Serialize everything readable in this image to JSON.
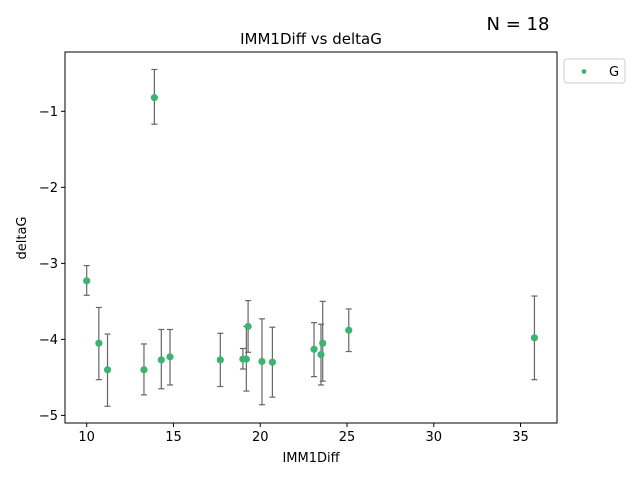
{
  "annotation": "N = 18",
  "colors": {
    "point": "#3cb371",
    "errorbar": "#666666",
    "axis": "#000000"
  },
  "chart_data": {
    "type": "scatter",
    "title": "IMM1Diff vs deltaG",
    "xlabel": "IMM1Diff",
    "ylabel": "deltaG",
    "xlim": [
      8.75,
      37.1
    ],
    "ylim": [
      -5.1,
      -0.22
    ],
    "xticks": [
      10,
      15,
      20,
      25,
      30,
      35
    ],
    "yticks": [
      -1,
      -2,
      -3,
      -4,
      -5
    ],
    "grid": false,
    "legend": {
      "entries": [
        "G"
      ],
      "placement": "outside-top-right"
    },
    "series": [
      {
        "name": "G",
        "points": [
          {
            "x": 10.0,
            "y": -3.23,
            "err_low": 0.19,
            "err_high": 0.2
          },
          {
            "x": 10.7,
            "y": -4.05,
            "err_low": 0.48,
            "err_high": 0.47
          },
          {
            "x": 11.2,
            "y": -4.4,
            "err_low": 0.48,
            "err_high": 0.47
          },
          {
            "x": 13.3,
            "y": -4.4,
            "err_low": 0.33,
            "err_high": 0.34
          },
          {
            "x": 13.9,
            "y": -0.82,
            "err_low": 0.35,
            "err_high": 0.37
          },
          {
            "x": 14.3,
            "y": -4.27,
            "err_low": 0.38,
            "err_high": 0.4
          },
          {
            "x": 14.8,
            "y": -4.23,
            "err_low": 0.37,
            "err_high": 0.36
          },
          {
            "x": 17.7,
            "y": -4.27,
            "err_low": 0.35,
            "err_high": 0.35
          },
          {
            "x": 19.0,
            "y": -4.26,
            "err_low": 0.13,
            "err_high": 0.14
          },
          {
            "x": 19.2,
            "y": -4.26,
            "err_low": 0.42,
            "err_high": 0.43
          },
          {
            "x": 19.3,
            "y": -3.83,
            "err_low": 0.34,
            "err_high": 0.34
          },
          {
            "x": 20.1,
            "y": -4.29,
            "err_low": 0.57,
            "err_high": 0.56
          },
          {
            "x": 20.7,
            "y": -4.3,
            "err_low": 0.46,
            "err_high": 0.46
          },
          {
            "x": 23.1,
            "y": -4.13,
            "err_low": 0.36,
            "err_high": 0.35
          },
          {
            "x": 23.5,
            "y": -4.2,
            "err_low": 0.4,
            "err_high": 0.4
          },
          {
            "x": 23.6,
            "y": -4.05,
            "err_low": 0.5,
            "err_high": 0.55
          },
          {
            "x": 25.1,
            "y": -3.88,
            "err_low": 0.28,
            "err_high": 0.28
          },
          {
            "x": 35.8,
            "y": -3.98,
            "err_low": 0.55,
            "err_high": 0.55
          }
        ]
      }
    ]
  }
}
